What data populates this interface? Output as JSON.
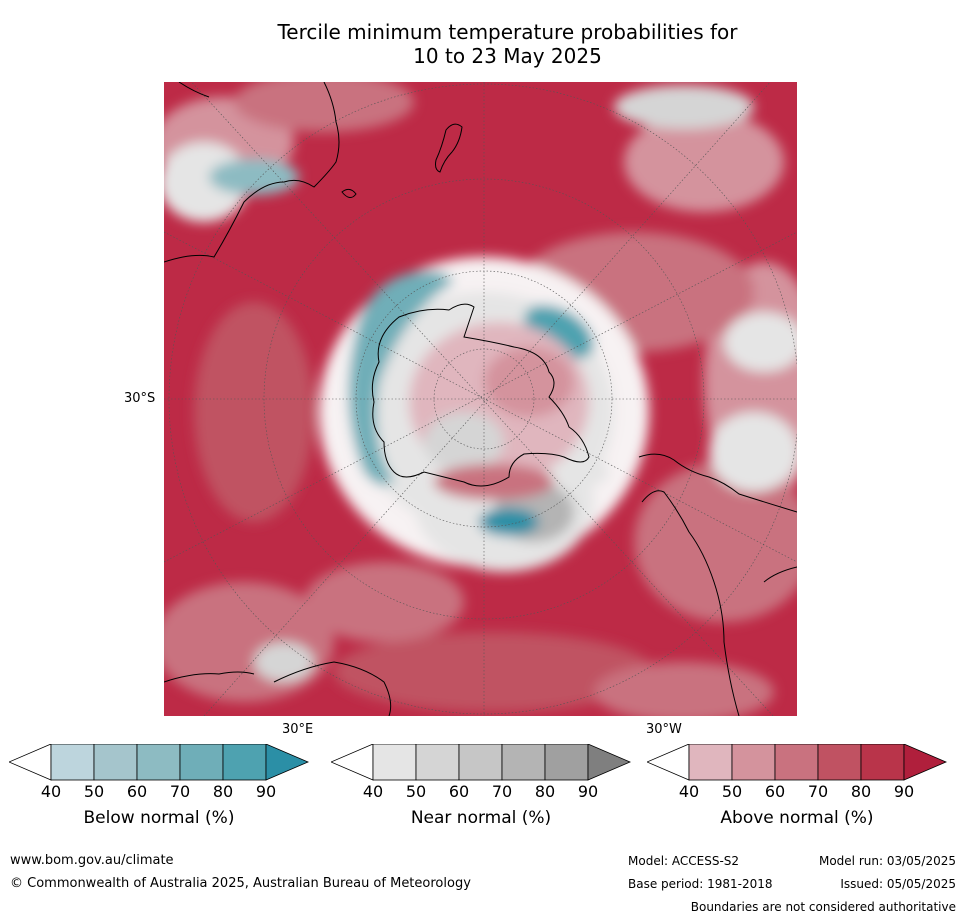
{
  "title": {
    "line1": "Tercile minimum temperature probabilities for",
    "line2": "10 to 23 May 2025"
  },
  "map": {
    "projection_labels": {
      "lat": "30°S",
      "lon_left": "30°E",
      "lon_right": "30°W"
    },
    "colors": {
      "above": [
        "#e0b6be",
        "#d4939d",
        "#c9727f",
        "#c05262",
        "#b9344a",
        "#b01f3c"
      ],
      "near": [
        "#e5e5e5",
        "#d5d5d5",
        "#c6c6c6",
        "#b4b4b4",
        "#a0a0a0",
        "#7f7f7f"
      ],
      "below": [
        "#bdd5dd",
        "#a5c5cc",
        "#8dbbc2",
        "#6faeb8",
        "#4ea2b0",
        "#2b8fa6"
      ]
    }
  },
  "colorbars": [
    {
      "label": "Below normal (%)",
      "ticks": [
        "40",
        "50",
        "60",
        "70",
        "80",
        "90"
      ],
      "colors": [
        "#bdd5dd",
        "#a5c5cc",
        "#8dbbc2",
        "#6faeb8",
        "#4ea2b0"
      ],
      "extend_color": "#2b8fa6"
    },
    {
      "label": "Near normal (%)",
      "ticks": [
        "40",
        "50",
        "60",
        "70",
        "80",
        "90"
      ],
      "colors": [
        "#e5e5e5",
        "#d5d5d5",
        "#c6c6c6",
        "#b4b4b4",
        "#a0a0a0"
      ],
      "extend_color": "#7f7f7f"
    },
    {
      "label": "Above normal (%)",
      "ticks": [
        "40",
        "50",
        "60",
        "70",
        "80",
        "90"
      ],
      "colors": [
        "#e0b6be",
        "#d4939d",
        "#c9727f",
        "#c05262",
        "#b9344a"
      ],
      "extend_color": "#b01f3c"
    }
  ],
  "footer": {
    "url": "www.bom.gov.au/climate",
    "copyright": "© Commonwealth of Australia 2025, Australian Bureau of Meteorology",
    "model": "Model: ACCESS-S2",
    "model_run": "Model run: 03/05/2025",
    "base_period": "Base period: 1981-2018",
    "issued": "Issued: 05/05/2025",
    "disclaimer": "Boundaries are not considered authoritative"
  }
}
